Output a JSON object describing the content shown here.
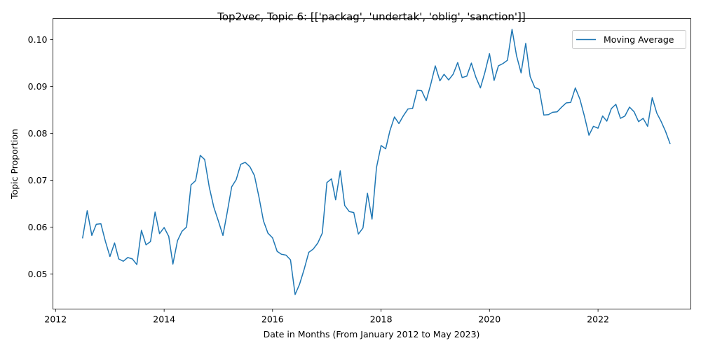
{
  "chart_data": {
    "type": "line",
    "title": "Top2vec, Topic 6: [['packag', 'undertak', 'oblig', 'sanction']]",
    "xlabel": "Date in Months (From January 2012 to May 2023)",
    "ylabel": "Topic Proportion",
    "xlim": [
      "2011-12-14",
      "2023-09-18"
    ],
    "ylim": [
      0.0425,
      0.1045
    ],
    "x_ticks": [
      "2012-01-01",
      "2014-01-01",
      "2016-01-01",
      "2018-01-01",
      "2020-01-01",
      "2022-01-01"
    ],
    "x_tick_labels": [
      "2012",
      "2014",
      "2016",
      "2018",
      "2020",
      "2022"
    ],
    "y_ticks": [
      0.05,
      0.06,
      0.07,
      0.08,
      0.09,
      0.1
    ],
    "y_tick_labels": [
      "0.05",
      "0.06",
      "0.07",
      "0.08",
      "0.09",
      "0.10"
    ],
    "legend": {
      "position": "upper right",
      "entries": [
        "Moving Average"
      ]
    },
    "grid": false,
    "series": [
      {
        "name": "Moving Average",
        "color": "#1f77b4",
        "x": [
          "2012-07",
          "2012-08",
          "2012-09",
          "2012-10",
          "2012-11",
          "2012-12",
          "2013-01",
          "2013-02",
          "2013-03",
          "2013-04",
          "2013-05",
          "2013-06",
          "2013-07",
          "2013-08",
          "2013-09",
          "2013-10",
          "2013-11",
          "2013-12",
          "2014-01",
          "2014-02",
          "2014-03",
          "2014-04",
          "2014-05",
          "2014-06",
          "2014-07",
          "2014-08",
          "2014-09",
          "2014-10",
          "2014-11",
          "2014-12",
          "2015-01",
          "2015-02",
          "2015-03",
          "2015-04",
          "2015-05",
          "2015-06",
          "2015-07",
          "2015-08",
          "2015-09",
          "2015-10",
          "2015-11",
          "2015-12",
          "2016-01",
          "2016-02",
          "2016-03",
          "2016-04",
          "2016-05",
          "2016-06",
          "2016-07",
          "2016-08",
          "2016-09",
          "2016-10",
          "2016-11",
          "2016-12",
          "2017-01",
          "2017-02",
          "2017-03",
          "2017-04",
          "2017-05",
          "2017-06",
          "2017-07",
          "2017-08",
          "2017-09",
          "2017-10",
          "2017-11",
          "2017-12",
          "2018-01",
          "2018-02",
          "2018-03",
          "2018-04",
          "2018-05",
          "2018-06",
          "2018-07",
          "2018-08",
          "2018-09",
          "2018-10",
          "2018-11",
          "2018-12",
          "2019-01",
          "2019-02",
          "2019-03",
          "2019-04",
          "2019-05",
          "2019-06",
          "2019-07",
          "2019-08",
          "2019-09",
          "2019-10",
          "2019-11",
          "2019-12",
          "2020-01",
          "2020-02",
          "2020-03",
          "2020-04",
          "2020-05",
          "2020-06",
          "2020-07",
          "2020-08",
          "2020-09",
          "2020-10",
          "2020-11",
          "2020-12",
          "2021-01",
          "2021-02",
          "2021-03",
          "2021-04",
          "2021-05",
          "2021-06",
          "2021-07",
          "2021-08",
          "2021-09",
          "2021-10",
          "2021-11",
          "2021-12",
          "2022-01",
          "2022-02",
          "2022-03",
          "2022-04",
          "2022-05",
          "2022-06",
          "2022-07",
          "2022-08",
          "2022-09",
          "2022-10",
          "2022-11",
          "2022-12",
          "2023-01",
          "2023-02",
          "2023-03",
          "2023-04",
          "2023-05"
        ],
        "values": [
          0.0577,
          0.0635,
          0.0582,
          0.0606,
          0.0607,
          0.057,
          0.0537,
          0.0566,
          0.0532,
          0.0527,
          0.0535,
          0.0532,
          0.052,
          0.0593,
          0.0562,
          0.0569,
          0.0632,
          0.0586,
          0.0599,
          0.058,
          0.0521,
          0.0571,
          0.0591,
          0.06,
          0.069,
          0.0699,
          0.0753,
          0.0744,
          0.0685,
          0.0643,
          0.0613,
          0.0582,
          0.063,
          0.0686,
          0.0701,
          0.0734,
          0.0738,
          0.0729,
          0.071,
          0.0665,
          0.0613,
          0.0587,
          0.0577,
          0.0548,
          0.0542,
          0.054,
          0.053,
          0.0456,
          0.0478,
          0.051,
          0.0546,
          0.0553,
          0.0566,
          0.0587,
          0.0695,
          0.0703,
          0.0658,
          0.072,
          0.0646,
          0.0633,
          0.0631,
          0.0585,
          0.0598,
          0.0672,
          0.0617,
          0.0727,
          0.0774,
          0.0767,
          0.0805,
          0.0835,
          0.0821,
          0.0838,
          0.0852,
          0.0853,
          0.0892,
          0.0891,
          0.087,
          0.0904,
          0.0944,
          0.0912,
          0.0926,
          0.0914,
          0.0926,
          0.0951,
          0.0919,
          0.0922,
          0.095,
          0.092,
          0.0897,
          0.093,
          0.097,
          0.0913,
          0.0944,
          0.0949,
          0.0956,
          0.1022,
          0.0966,
          0.0929,
          0.0992,
          0.0921,
          0.0898,
          0.0894,
          0.0839,
          0.084,
          0.0845,
          0.0846,
          0.0856,
          0.0865,
          0.0866,
          0.0897,
          0.0873,
          0.0837,
          0.0796,
          0.0815,
          0.0811,
          0.0837,
          0.0826,
          0.0853,
          0.0862,
          0.0832,
          0.0837,
          0.0856,
          0.0846,
          0.0825,
          0.0832,
          0.0815,
          0.0876,
          0.0843,
          0.0826,
          0.0804,
          0.0778
        ]
      }
    ]
  }
}
